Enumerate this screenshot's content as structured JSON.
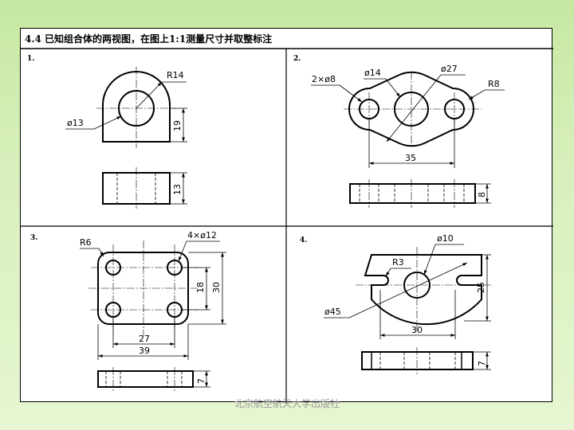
{
  "title": "4.4 已知组合体的两视图，在图上1:1测量尺寸并取整标注",
  "problems": [
    {
      "number": "1.",
      "dims": {
        "radius": "R14",
        "hole": "ø13",
        "height": "19",
        "bottom_height": "13"
      }
    },
    {
      "number": "2.",
      "dims": {
        "small_holes": "2×ø8",
        "center_hole": "ø14",
        "boss": "ø27",
        "radius": "R8",
        "spacing": "35",
        "thickness": "8"
      }
    },
    {
      "number": "3.",
      "dims": {
        "radius": "R6",
        "holes": "4×ø12",
        "inner_height": "18",
        "outer_height": "30",
        "inner_width": "27",
        "outer_width": "39",
        "thickness": "7"
      }
    },
    {
      "number": "4.",
      "dims": {
        "hole": "ø10",
        "slot_radius": "R3",
        "outer_circle": "ø45",
        "height": "25",
        "width": "30",
        "thickness": "7"
      }
    }
  ],
  "footer": "北京航空航天大学出版社"
}
